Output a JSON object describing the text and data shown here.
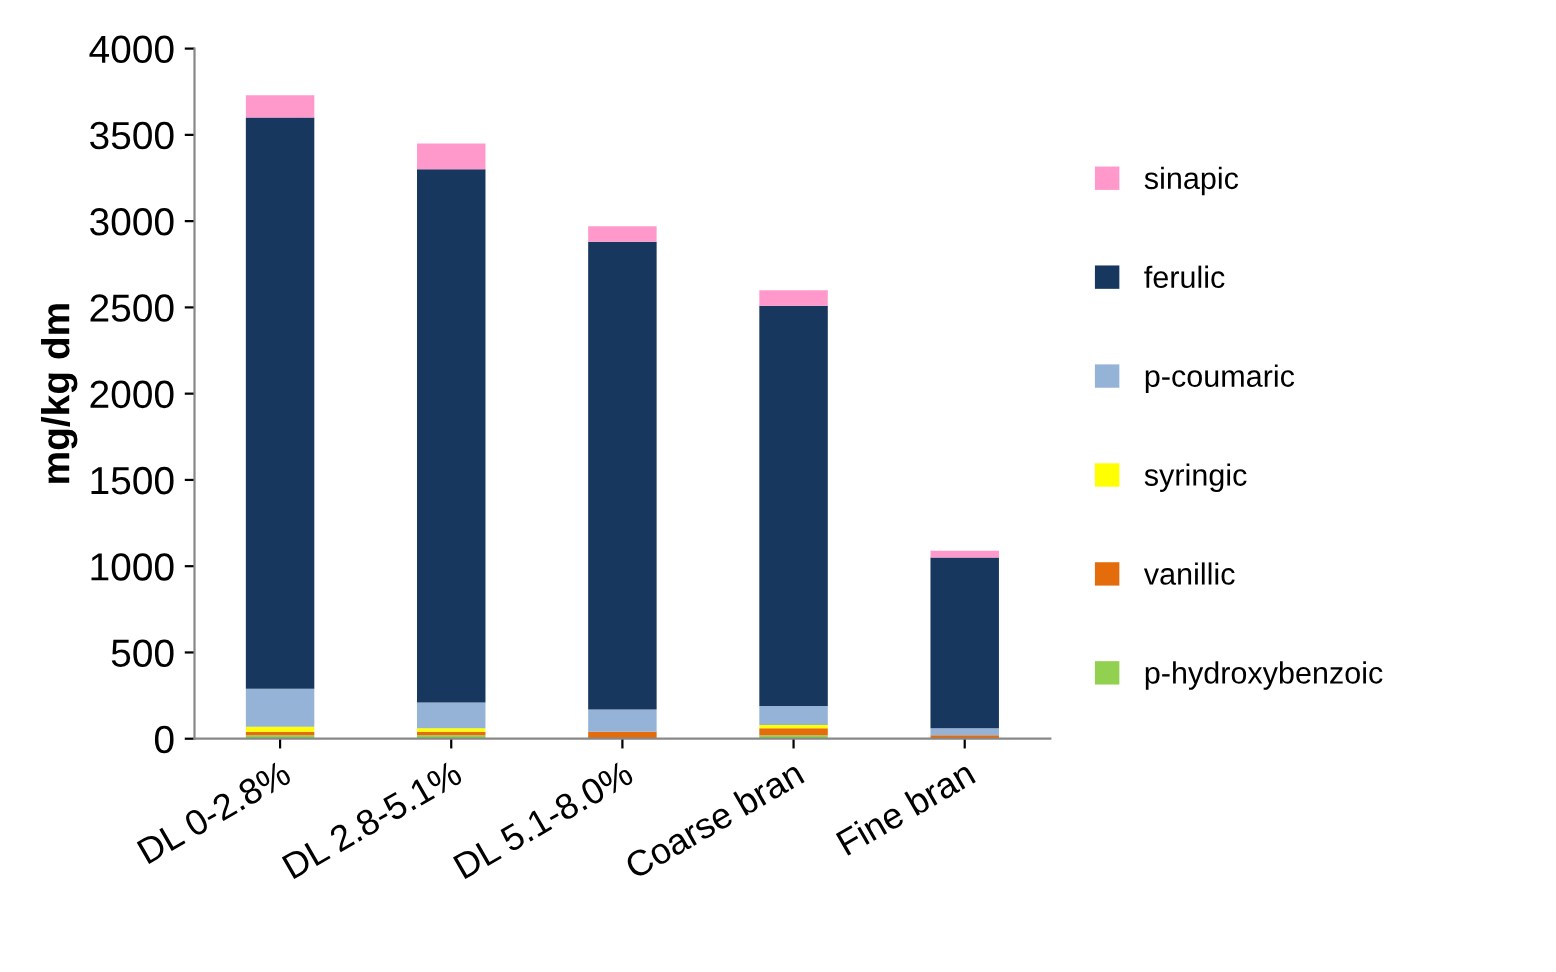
{
  "chart_data": {
    "type": "bar",
    "stacked": true,
    "ylabel": "mg/kg dm",
    "categories": [
      "DL 0-2.8%",
      "DL 2.8-5.1%",
      "DL 5.1-8.0%",
      "Coarse bran",
      "Fine bran"
    ],
    "series": [
      {
        "name": "p-hydroxybenzoic",
        "color": "#92d050",
        "values": [
          20,
          20,
          null,
          20,
          null
        ]
      },
      {
        "name": "vanillic",
        "color": "#e46c0a",
        "values": [
          20,
          20,
          40,
          40,
          20
        ]
      },
      {
        "name": "syringic",
        "color": "#ffff00",
        "values": [
          30,
          20,
          null,
          20,
          null
        ]
      },
      {
        "name": "p-coumaric",
        "color": "#95b3d7",
        "values": [
          220,
          150,
          130,
          110,
          40
        ]
      },
      {
        "name": "ferulic",
        "color": "#17375e",
        "values": [
          3310,
          3090,
          2710,
          2320,
          990
        ]
      },
      {
        "name": "sinapic",
        "color": "#ff99cc",
        "values": [
          130,
          150,
          90,
          90,
          40
        ]
      }
    ],
    "ylim": [
      0,
      4000
    ],
    "yticks": [
      0,
      500,
      1000,
      1500,
      2000,
      2500,
      3000,
      3500,
      4000
    ],
    "grid": false,
    "legend": "right"
  }
}
